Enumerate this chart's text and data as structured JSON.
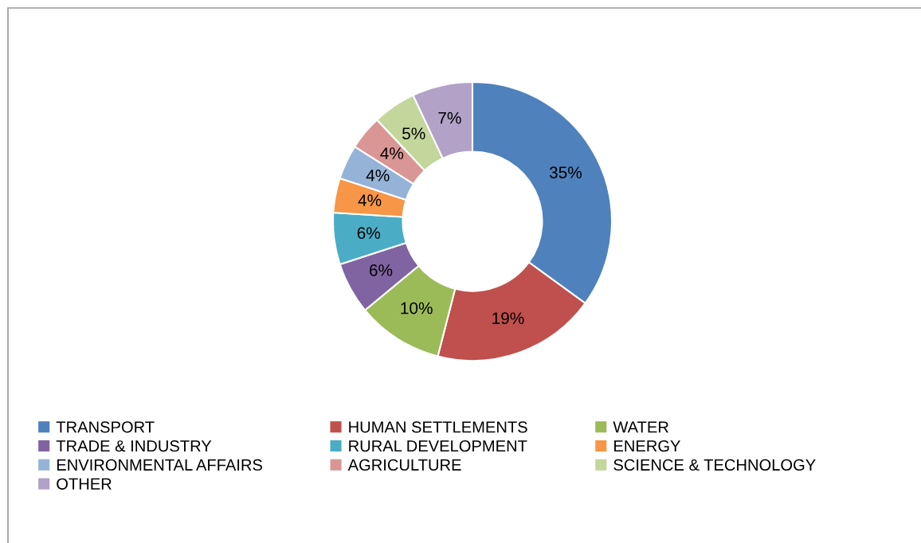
{
  "chart_data": {
    "type": "donut",
    "categories": [
      "TRANSPORT",
      "HUMAN SETTLEMENTS",
      "WATER",
      "TRADE & INDUSTRY",
      "RURAL DEVELOPMENT",
      "ENERGY",
      "ENVIRONMENTAL AFFAIRS",
      "AGRICULTURE",
      "SCIENCE & TECHNOLOGY",
      "OTHER"
    ],
    "values": [
      35,
      19,
      10,
      6,
      6,
      4,
      4,
      4,
      5,
      7
    ],
    "colors": [
      "#4f81bd",
      "#c0504d",
      "#9bbb59",
      "#8064a2",
      "#4bacc6",
      "#f79646",
      "#95b3d7",
      "#d99694",
      "#c3d69b",
      "#b2a2c7"
    ],
    "value_labels": [
      "35%",
      "19%",
      "10%",
      "6%",
      "6%",
      "4%",
      "4%",
      "4%",
      "5%",
      "7%"
    ],
    "legend": "bottom"
  }
}
